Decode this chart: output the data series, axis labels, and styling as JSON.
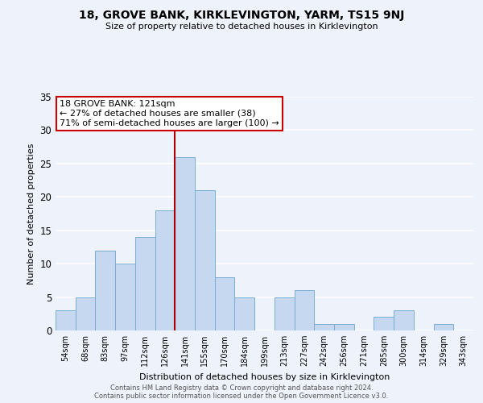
{
  "title": "18, GROVE BANK, KIRKLEVINGTON, YARM, TS15 9NJ",
  "subtitle": "Size of property relative to detached houses in Kirklevington",
  "xlabel": "Distribution of detached houses by size in Kirklevington",
  "ylabel": "Number of detached properties",
  "bar_labels": [
    "54sqm",
    "68sqm",
    "83sqm",
    "97sqm",
    "112sqm",
    "126sqm",
    "141sqm",
    "155sqm",
    "170sqm",
    "184sqm",
    "199sqm",
    "213sqm",
    "227sqm",
    "242sqm",
    "256sqm",
    "271sqm",
    "285sqm",
    "300sqm",
    "314sqm",
    "329sqm",
    "343sqm"
  ],
  "bar_values": [
    3,
    5,
    12,
    10,
    14,
    18,
    26,
    21,
    8,
    5,
    0,
    5,
    6,
    1,
    1,
    0,
    2,
    3,
    0,
    1,
    0
  ],
  "bar_color": "#c5d8ef",
  "bar_edge_color": "#7aadd4",
  "vline_x": 5.5,
  "vline_color": "#aa0000",
  "annotation_lines": [
    "18 GROVE BANK: 121sqm",
    "← 27% of detached houses are smaller (38)",
    "71% of semi-detached houses are larger (100) →"
  ],
  "annotation_box_facecolor": "#ffffff",
  "annotation_box_edgecolor": "#cc0000",
  "ylim": [
    0,
    35
  ],
  "yticks": [
    0,
    5,
    10,
    15,
    20,
    25,
    30,
    35
  ],
  "footnote1": "Contains HM Land Registry data © Crown copyright and database right 2024.",
  "footnote2": "Contains public sector information licensed under the Open Government Licence v3.0.",
  "bg_color": "#eef2fa",
  "grid_color": "#ffffff"
}
